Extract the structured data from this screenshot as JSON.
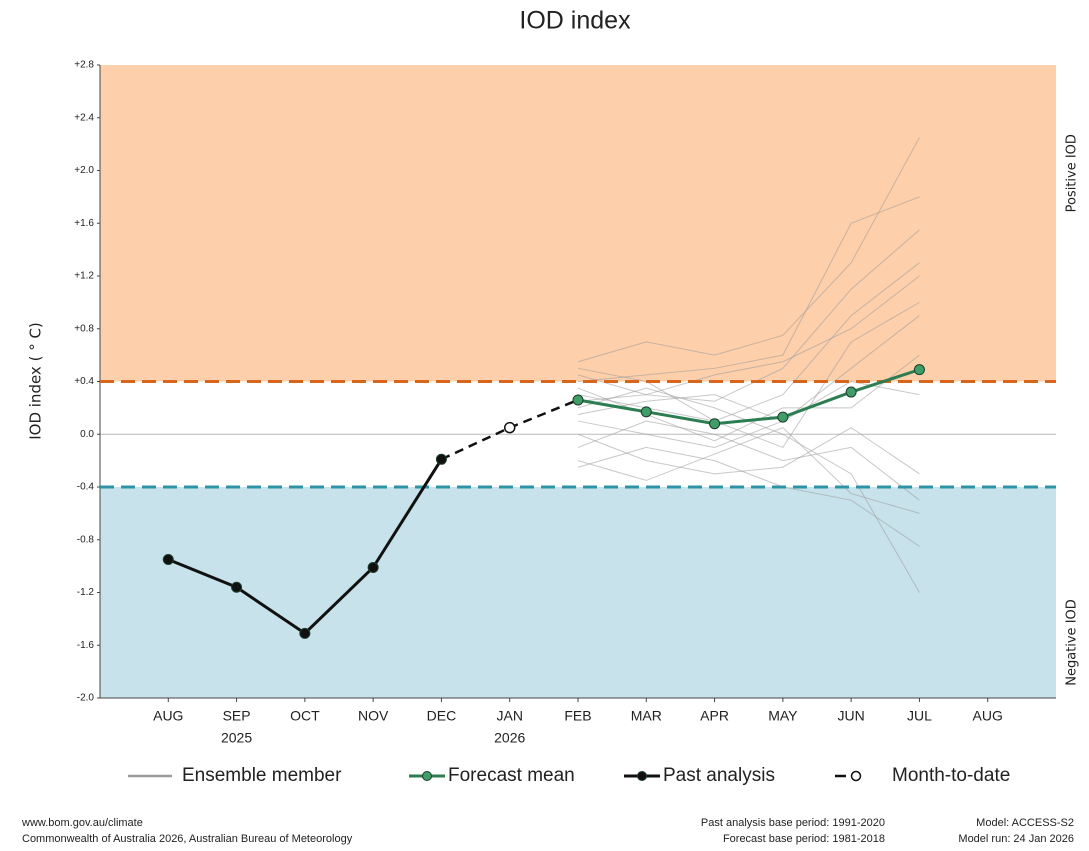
{
  "chart_data": {
    "type": "line",
    "title": "IOD index",
    "y_label": "IOD index ( ° C)",
    "categories": [
      "AUG",
      "SEP",
      "OCT",
      "NOV",
      "DEC",
      "JAN",
      "FEB",
      "MAR",
      "APR",
      "MAY",
      "JUN",
      "JUL",
      "AUG"
    ],
    "category_sublabels": [
      null,
      "2025",
      null,
      null,
      null,
      "2026",
      null,
      null,
      null,
      null,
      null,
      null,
      null
    ],
    "ylim": [
      -2.0,
      2.8
    ],
    "yticks": [
      {
        "value": 2.8,
        "label": "+2.8"
      },
      {
        "value": 2.4,
        "label": "+2.4"
      },
      {
        "value": 2.0,
        "label": "+2.0"
      },
      {
        "value": 1.6,
        "label": "+1.6"
      },
      {
        "value": 1.2,
        "label": "+1.2"
      },
      {
        "value": 0.8,
        "label": "+0.8"
      },
      {
        "value": 0.4,
        "label": "+0.4"
      },
      {
        "value": 0,
        "label": "0.0"
      },
      -0.4,
      -0.8,
      -1.2,
      -1.6,
      {
        "value": -2.0,
        "label": "-2.0"
      }
    ],
    "thresholds": [
      {
        "value": 0.4,
        "label": "Positive IOD",
        "line_color": "#d8651c",
        "fill": "#fdcfab",
        "label_color": "#ef8a7a",
        "side": "above"
      },
      {
        "value": -0.4,
        "label": "Negative IOD",
        "line_color": "#2f93a6",
        "fill": "#c7e2ea",
        "label_color": "#8c98b8",
        "side": "below"
      }
    ],
    "ensemble": {
      "name": "Ensemble member",
      "color": "#9a9a9a",
      "members": [
        [
          null,
          null,
          null,
          null,
          null,
          null,
          0.55,
          0.7,
          0.6,
          0.75,
          1.3,
          2.25,
          null
        ],
        [
          null,
          null,
          null,
          null,
          null,
          null,
          0.4,
          0.45,
          0.5,
          0.6,
          1.6,
          1.8,
          null
        ],
        [
          null,
          null,
          null,
          null,
          null,
          null,
          0.3,
          0.2,
          0.1,
          0.3,
          0.9,
          1.3,
          null
        ],
        [
          null,
          null,
          null,
          null,
          null,
          null,
          0.1,
          0.0,
          -0.1,
          0.1,
          0.5,
          0.9,
          null
        ],
        [
          null,
          null,
          null,
          null,
          null,
          null,
          -0.25,
          -0.1,
          -0.2,
          -0.4,
          -0.5,
          -0.85,
          null
        ],
        [
          null,
          null,
          null,
          null,
          null,
          null,
          0.2,
          0.35,
          0.2,
          0.0,
          -0.3,
          -1.2,
          null
        ],
        [
          null,
          null,
          null,
          null,
          null,
          null,
          0.45,
          0.3,
          0.25,
          0.5,
          1.1,
          1.55,
          null
        ],
        [
          null,
          null,
          null,
          null,
          null,
          null,
          -0.1,
          0.1,
          0.0,
          -0.2,
          -0.1,
          -0.5,
          null
        ],
        [
          null,
          null,
          null,
          null,
          null,
          null,
          0.35,
          0.15,
          -0.05,
          0.2,
          0.2,
          0.6,
          null
        ],
        [
          null,
          null,
          null,
          null,
          null,
          null,
          0.15,
          0.25,
          0.3,
          0.1,
          0.4,
          0.3,
          null
        ],
        [
          null,
          null,
          null,
          null,
          null,
          null,
          0.5,
          0.4,
          0.1,
          -0.1,
          0.7,
          1.0,
          null
        ],
        [
          null,
          null,
          null,
          null,
          null,
          null,
          0.0,
          -0.2,
          -0.3,
          -0.25,
          0.05,
          -0.3,
          null
        ],
        [
          null,
          null,
          null,
          null,
          null,
          null,
          0.25,
          0.3,
          0.45,
          0.55,
          0.8,
          1.2,
          null
        ],
        [
          null,
          null,
          null,
          null,
          null,
          null,
          -0.2,
          -0.35,
          -0.15,
          0.05,
          -0.45,
          -0.6,
          null
        ]
      ]
    },
    "series": [
      {
        "name": "Forecast mean",
        "color": "#2d7d52",
        "marker_fill": "#3f9e68",
        "marker": "filled",
        "values": [
          null,
          null,
          null,
          null,
          null,
          null,
          0.26,
          0.17,
          0.08,
          0.13,
          0.32,
          0.49,
          null
        ]
      },
      {
        "name": "Past analysis",
        "color": "#111111",
        "marker_fill": "#111111",
        "marker": "filled",
        "values": [
          -0.95,
          -1.16,
          -1.51,
          -1.01,
          -0.19,
          null,
          null,
          null,
          null,
          null,
          null,
          null,
          null
        ]
      },
      {
        "name": "Month-to-date",
        "color": "#111111",
        "marker_fill": "#ffffff",
        "marker": "open",
        "values": [
          null,
          null,
          null,
          null,
          null,
          0.05,
          null,
          null,
          null,
          null,
          null,
          null,
          null
        ]
      }
    ],
    "footer": {
      "left": [
        "www.bom.gov.au/climate",
        "Commonwealth of Australia 2026, Australian Bureau of Meteorology"
      ],
      "middle": [
        "Past analysis base period: 1991-2020",
        "Forecast base period: 1981-2018"
      ],
      "right": [
        "Model: ACCESS-S2",
        "Model run: 24 Jan 2026"
      ]
    }
  }
}
